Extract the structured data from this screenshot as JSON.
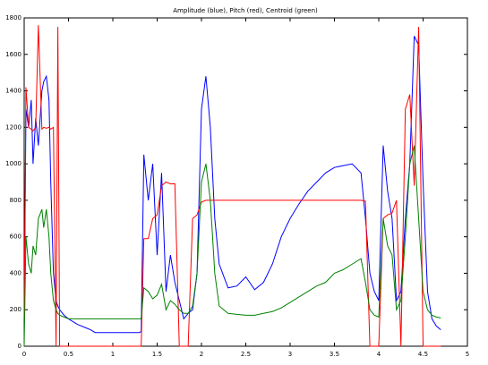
{
  "chart_data": {
    "type": "line",
    "title": "Amplitude  (blue),  Pitch (red),  Centroid (green)",
    "x": [
      0,
      0.02,
      0.05,
      0.08,
      0.1,
      0.13,
      0.16,
      0.2,
      0.22,
      0.25,
      0.28,
      0.3,
      0.33,
      0.36,
      0.38,
      0.4,
      0.45,
      0.5,
      0.6,
      0.7,
      0.75,
      0.8,
      1.0,
      1.2,
      1.3,
      1.32,
      1.35,
      1.4,
      1.45,
      1.5,
      1.55,
      1.6,
      1.65,
      1.7,
      1.75,
      1.8,
      1.85,
      1.9,
      1.95,
      2.0,
      2.05,
      2.1,
      2.15,
      2.2,
      2.3,
      2.4,
      2.5,
      2.6,
      2.7,
      2.8,
      2.9,
      3.0,
      3.1,
      3.2,
      3.3,
      3.4,
      3.5,
      3.6,
      3.7,
      3.8,
      3.85,
      3.9,
      3.95,
      4.0,
      4.05,
      4.1,
      4.15,
      4.2,
      4.25,
      4.3,
      4.35,
      4.4,
      4.45,
      4.5,
      4.55,
      4.6,
      4.65,
      4.7
    ],
    "series": [
      {
        "name": "Amplitude",
        "color": "#0000ff",
        "values": [
          80,
          1300,
          1200,
          1350,
          1000,
          1250,
          1100,
          1400,
          1450,
          1480,
          1350,
          900,
          400,
          250,
          220,
          200,
          170,
          150,
          120,
          100,
          90,
          75,
          75,
          75,
          75,
          80,
          1050,
          800,
          1000,
          500,
          950,
          300,
          500,
          350,
          250,
          150,
          180,
          200,
          400,
          1300,
          1480,
          1200,
          700,
          450,
          320,
          330,
          380,
          310,
          350,
          450,
          600,
          700,
          780,
          850,
          900,
          950,
          980,
          990,
          1000,
          950,
          700,
          400,
          300,
          250,
          1100,
          850,
          700,
          250,
          300,
          700,
          1000,
          1700,
          1650,
          900,
          300,
          150,
          110,
          90
        ]
      },
      {
        "name": "Pitch",
        "color": "#ff0000",
        "values": [
          150,
          1420,
          1200,
          1190,
          1180,
          1200,
          1760,
          1190,
          1200,
          1195,
          1200,
          1190,
          1200,
          0,
          1750,
          0,
          0,
          0,
          0,
          0,
          0,
          0,
          0,
          0,
          0,
          0,
          590,
          590,
          700,
          720,
          880,
          900,
          890,
          890,
          0,
          0,
          0,
          700,
          720,
          790,
          800,
          800,
          800,
          800,
          800,
          800,
          800,
          800,
          800,
          800,
          800,
          800,
          800,
          800,
          800,
          800,
          800,
          800,
          800,
          800,
          795,
          0,
          0,
          0,
          700,
          720,
          730,
          800,
          0,
          1300,
          1380,
          880,
          1750,
          0,
          0,
          0,
          0,
          0
        ]
      },
      {
        "name": "Centroid",
        "color": "#008000",
        "values": [
          0,
          600,
          450,
          400,
          550,
          500,
          700,
          750,
          650,
          750,
          600,
          400,
          250,
          200,
          180,
          170,
          160,
          150,
          150,
          150,
          150,
          150,
          150,
          150,
          150,
          150,
          320,
          300,
          260,
          280,
          340,
          200,
          250,
          230,
          200,
          180,
          180,
          220,
          400,
          900,
          1000,
          800,
          400,
          220,
          180,
          175,
          170,
          170,
          180,
          190,
          210,
          240,
          270,
          300,
          330,
          350,
          400,
          420,
          450,
          480,
          350,
          200,
          170,
          160,
          700,
          550,
          500,
          200,
          250,
          600,
          1000,
          1100,
          700,
          300,
          200,
          170,
          160,
          155
        ]
      }
    ],
    "xlim": [
      0,
      5
    ],
    "xticks": [
      0,
      0.5,
      1,
      1.5,
      2,
      2.5,
      3,
      3.5,
      4,
      4.5,
      5
    ],
    "ylim": [
      0,
      1800
    ],
    "yticks": [
      0,
      200,
      400,
      600,
      800,
      1000,
      1200,
      1400,
      1600,
      1800
    ]
  }
}
